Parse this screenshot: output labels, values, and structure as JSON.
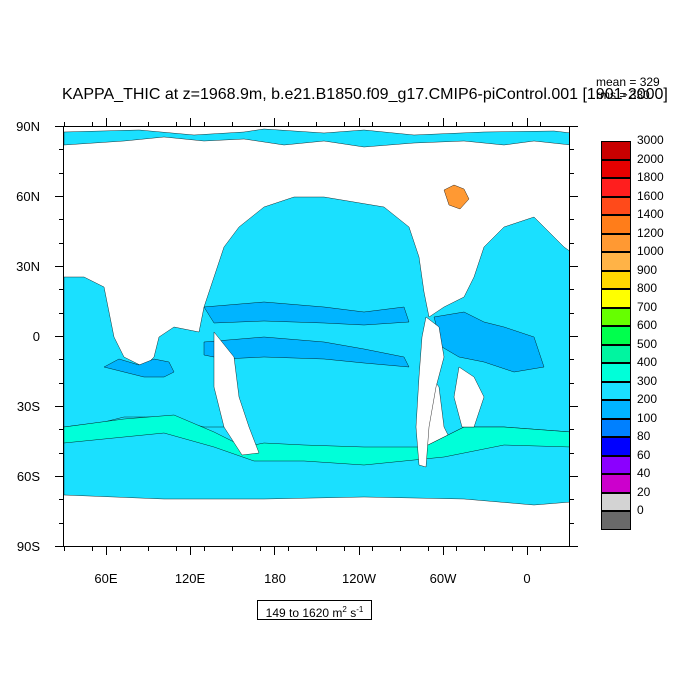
{
  "title": "KAPPA_THIC at z=1968.9m, b.e21.B1850.f09_g17.CMIP6-piControl.001 [1901-2000]",
  "stats": {
    "mean": "mean = 329",
    "rms": "rms = 330"
  },
  "lat_ticks": [
    "90N",
    "60N",
    "30N",
    "0",
    "30S",
    "60S",
    "90S"
  ],
  "lon_ticks": [
    "60E",
    "120E",
    "180",
    "120W",
    "60W",
    "0"
  ],
  "range": {
    "text": "149 to 1620 m",
    "sup1": "2",
    "mid": " s",
    "sup2": "-1"
  },
  "colorbar": {
    "labels": [
      "3000",
      "2000",
      "1800",
      "1600",
      "1400",
      "1200",
      "1000",
      "900",
      "800",
      "700",
      "600",
      "500",
      "400",
      "300",
      "200",
      "100",
      "80",
      "60",
      "40",
      "20",
      "0"
    ],
    "colors": [
      "#c80000",
      "#e60000",
      "#ff1e1e",
      "#ff4a1a",
      "#ff7d1a",
      "#ff9933",
      "#ffb347",
      "#ffd700",
      "#ffff00",
      "#66ff00",
      "#00ff4d",
      "#00f5a0",
      "#00ffd9",
      "#1ae0ff",
      "#00b4ff",
      "#0080ff",
      "#0000ff",
      "#8b00ff",
      "#cc00cc",
      "#d3d3d3",
      "#696969"
    ]
  },
  "map_colors": {
    "ocean_main": "#1ae0ff",
    "ocean_mid": "#00ffd9",
    "ocean_low": "#00b4ff",
    "land": "#ffffff",
    "high": "#ff9933"
  }
}
